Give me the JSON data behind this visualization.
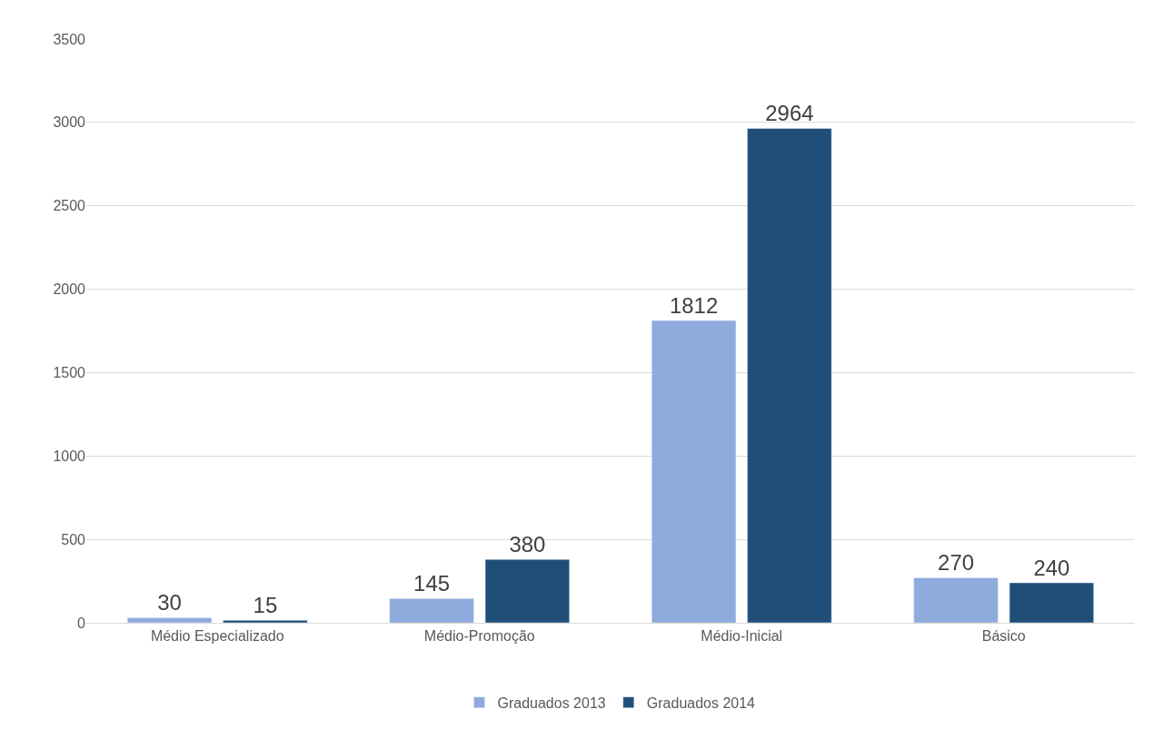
{
  "chart_data": {
    "type": "bar",
    "categories": [
      "Médio Especializado",
      "Médio-Promoção",
      "Médio-Inicial",
      "Básico"
    ],
    "series": [
      {
        "name": "Graduados 2013",
        "color": "#8faadc",
        "values": [
          30,
          145,
          1812,
          270
        ]
      },
      {
        "name": "Graduados 2014",
        "color": "#1f4e79",
        "values": [
          15,
          380,
          2964,
          240
        ]
      }
    ],
    "ylim": [
      0,
      3500
    ],
    "yticks": [
      0,
      500,
      1000,
      1500,
      2000,
      2500,
      3000,
      3500
    ],
    "grid": "y",
    "legend": "bottom",
    "data_labels": true
  }
}
